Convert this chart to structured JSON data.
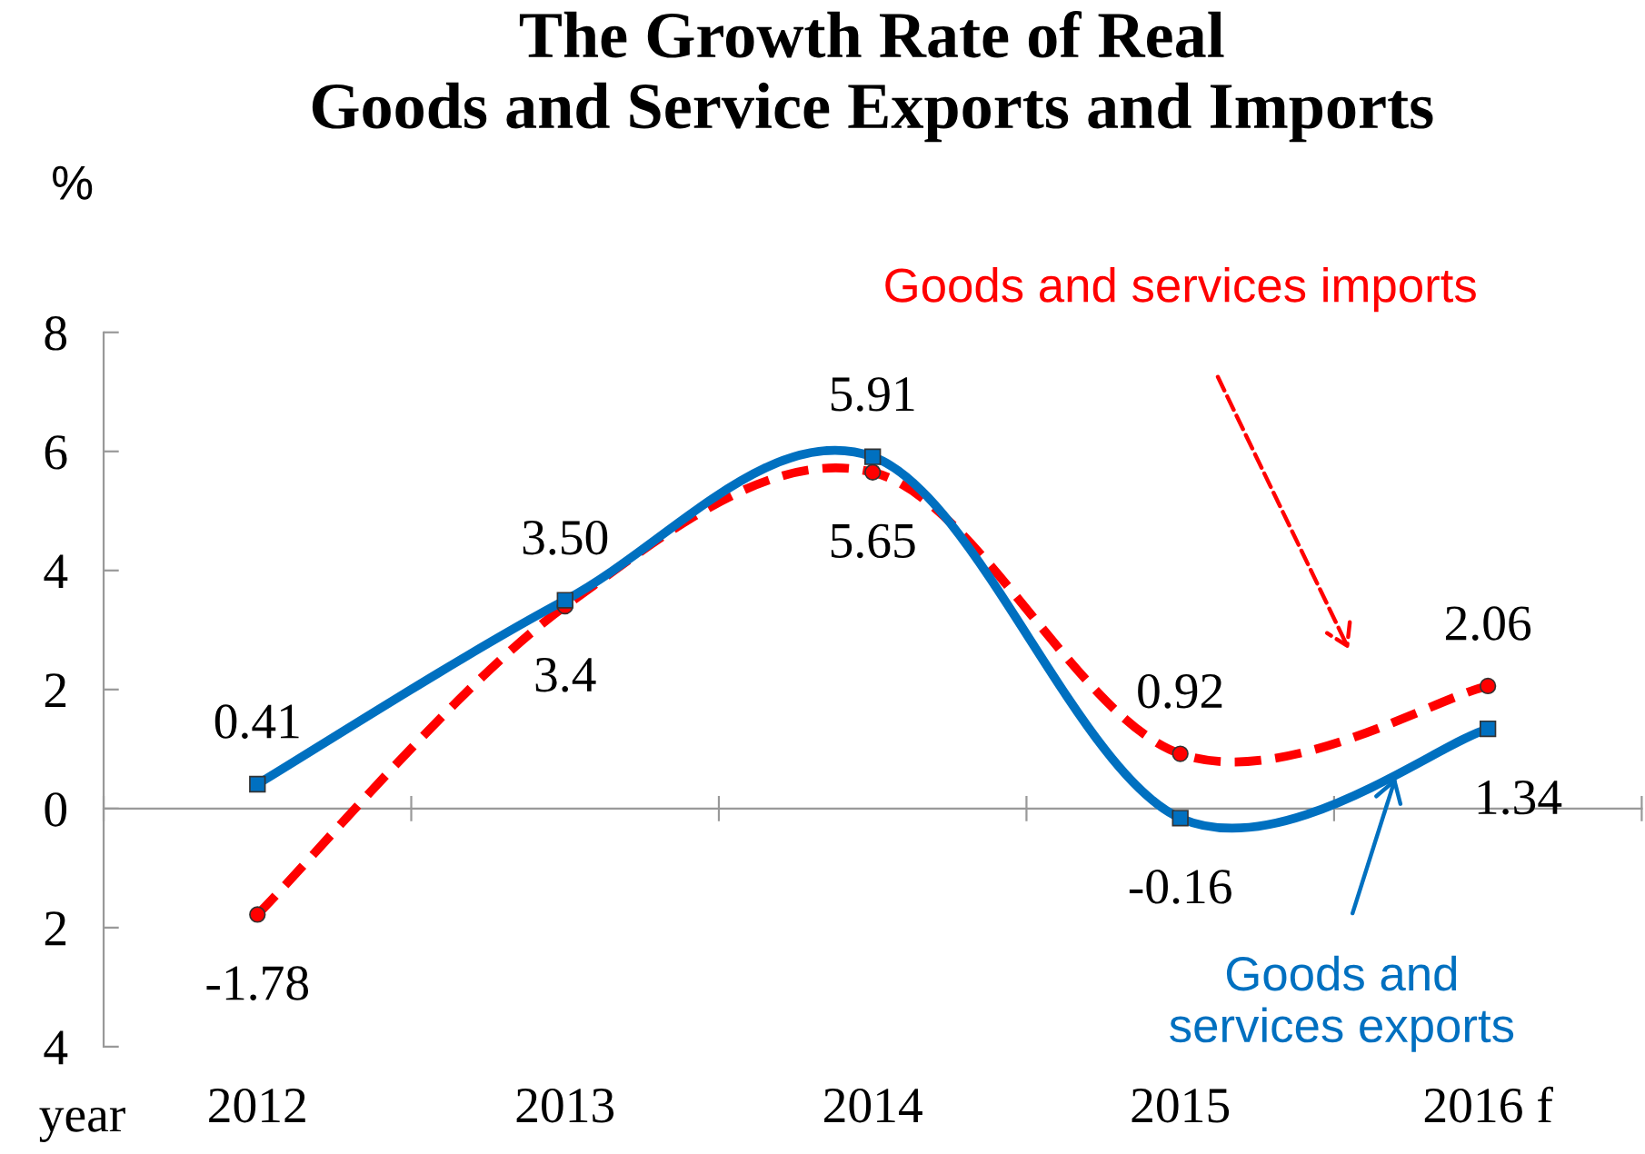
{
  "chart_data": {
    "type": "line",
    "title": "The Growth Rate of Real\nGoods and Service Exports and Imports",
    "ylabel": "%",
    "xlabel": "year",
    "categories": [
      "2012",
      "2013",
      "2014",
      "2015",
      "2016 f"
    ],
    "series": [
      {
        "name": "Goods and services imports",
        "color": "#ff0000",
        "marker": "circle",
        "line_style": "dashed",
        "values": [
          -1.78,
          3.4,
          5.65,
          0.92,
          2.06
        ],
        "value_labels": [
          "-1.78",
          "3.4",
          "5.65",
          "0.92",
          "2.06"
        ]
      },
      {
        "name": "Goods and\nservices exports",
        "color": "#0070c0",
        "marker": "square",
        "line_style": "solid",
        "values": [
          0.41,
          3.5,
          5.91,
          -0.16,
          1.34
        ],
        "value_labels": [
          "0.41",
          "3.50",
          "5.91",
          "-0.16",
          "1.34"
        ]
      }
    ],
    "ylim": [
      -4,
      8
    ],
    "yticks": [
      {
        "value": -4,
        "label": "4"
      },
      {
        "value": -2,
        "label": "2"
      },
      0,
      2,
      4,
      6,
      8
    ],
    "legend": false
  }
}
